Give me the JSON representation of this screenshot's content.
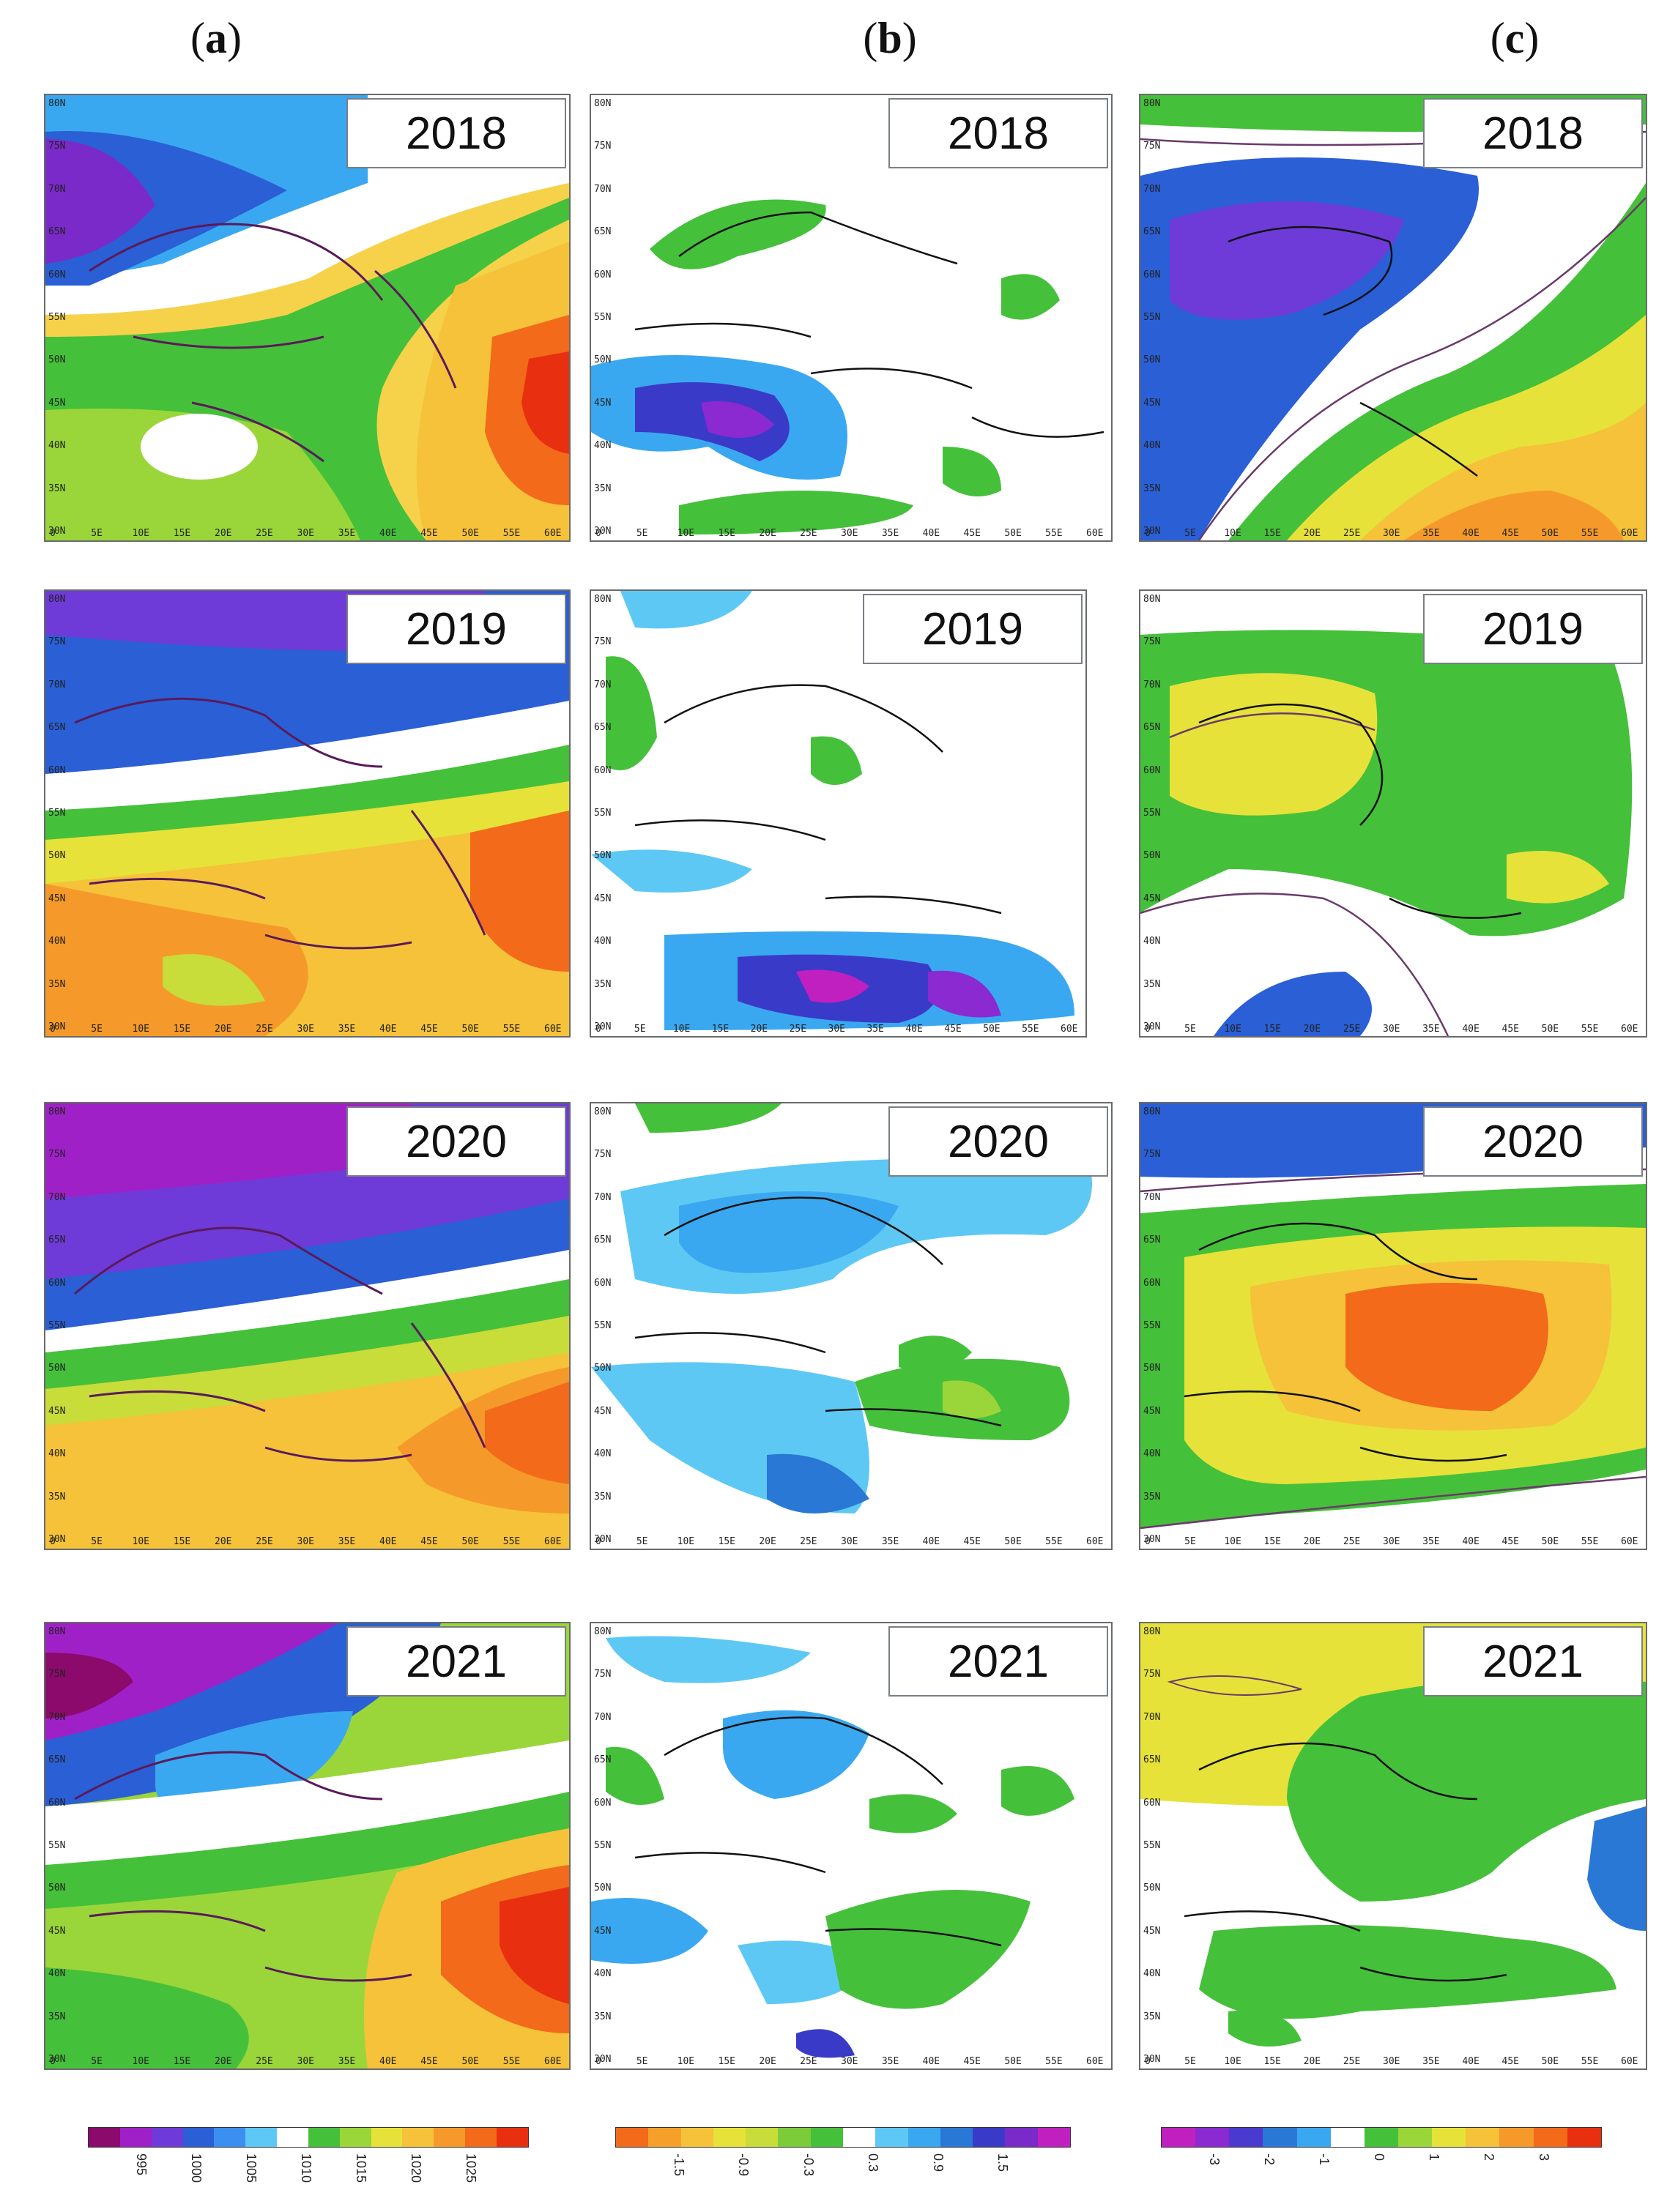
{
  "columns": [
    {
      "open": "(",
      "letter": "a",
      "close": ")"
    },
    {
      "open": "(",
      "letter": "b",
      "close": ")"
    },
    {
      "open": "(",
      "letter": "c",
      "close": ")"
    }
  ],
  "years": [
    "2018",
    "2019",
    "2020",
    "2021"
  ],
  "y_ticks": [
    "80N",
    "75N",
    "70N",
    "65N",
    "60N",
    "55N",
    "50N",
    "45N",
    "40N",
    "35N",
    "30N"
  ],
  "x_ticks": [
    "0",
    "5E",
    "10E",
    "15E",
    "20E",
    "25E",
    "30E",
    "35E",
    "40E",
    "45E",
    "50E",
    "55E",
    "60E"
  ],
  "colorbars": [
    {
      "name": "sea-level-pressure",
      "colors": [
        "#8b0a6b",
        "#a020c8",
        "#6e3bd8",
        "#2a5fd6",
        "#3a8ff0",
        "#5ec8f5",
        "#ffffff",
        "#45c03a",
        "#9ad63a",
        "#e6e23a",
        "#f5c23a",
        "#f59a2a",
        "#f26a1a",
        "#e83010"
      ],
      "labels": [
        "995",
        "1000",
        "1005",
        "1010",
        "1015",
        "1020",
        "1025"
      ]
    },
    {
      "name": "anomaly-b",
      "colors": [
        "#f26a1a",
        "#f5a02a",
        "#f5c23a",
        "#e6e23a",
        "#c8dc3a",
        "#7ccc3a",
        "#45c03a",
        "#ffffff",
        "#5ec8f5",
        "#3aa8f0",
        "#2a78d6",
        "#3a3ac8",
        "#7a2ac8",
        "#c020c0"
      ],
      "labels": [
        "-1.5",
        "-0.9",
        "-0.3",
        "0.3",
        "0.9",
        "1.5"
      ]
    },
    {
      "name": "anomaly-c",
      "colors": [
        "#c020c0",
        "#8a2ad0",
        "#4a3ad0",
        "#2a78d6",
        "#3aa8f0",
        "#ffffff",
        "#45c03a",
        "#9ad63a",
        "#e6e23a",
        "#f5c23a",
        "#f59a2a",
        "#f26a1a",
        "#e83010"
      ],
      "labels": [
        "-3",
        "-2",
        "-1",
        "0",
        "1",
        "2",
        "3"
      ]
    }
  ]
}
